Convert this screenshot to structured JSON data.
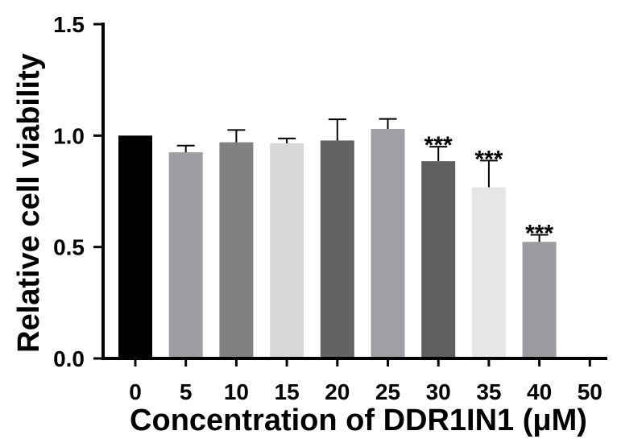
{
  "chart_data": {
    "type": "bar",
    "xlabel": "Concentration of DDR1IN1 (μM)",
    "ylabel": "Relative cell viability",
    "ylim": [
      0,
      1.5
    ],
    "yticks": [
      "0.0",
      "0.5",
      "1.0",
      "1.5"
    ],
    "categories": [
      "0",
      "5",
      "10",
      "15",
      "20",
      "25",
      "30",
      "35",
      "40",
      "50"
    ],
    "values": [
      1.0,
      0.925,
      0.97,
      0.965,
      0.978,
      1.03,
      0.885,
      0.768,
      0.523,
      0.005
    ],
    "errors": [
      0.0,
      0.03,
      0.055,
      0.022,
      0.095,
      0.045,
      0.065,
      0.12,
      0.032,
      0.0
    ],
    "colors": [
      "#000000",
      "#9e9ea2",
      "#818181",
      "#d8d8d8",
      "#636363",
      "#a0a0a4",
      "#5f5f5f",
      "#e6e6e6",
      "#9c9ca0",
      "#b0b0b0"
    ],
    "significance": [
      "",
      "",
      "",
      "",
      "",
      "",
      "***",
      "***",
      "***",
      ""
    ],
    "grid": false,
    "legend": "none"
  }
}
